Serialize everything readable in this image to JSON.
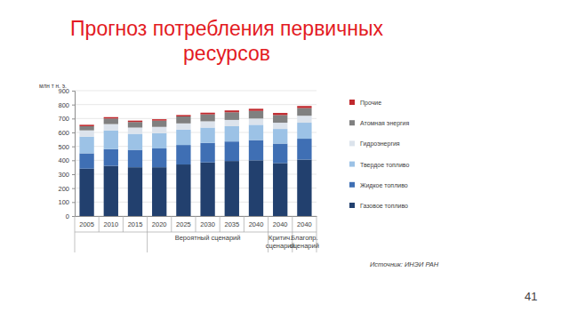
{
  "chart_data": {
    "type": "bar",
    "stacked": true,
    "title": "Прогноз потребления первичных ресурсов",
    "y_label": "млн т н. э.",
    "categories": [
      "2005",
      "2010",
      "2015",
      "2020",
      "2025",
      "2030",
      "2035",
      "2040",
      "2040",
      "2040"
    ],
    "groups": [
      {
        "label": [
          "Вероятный сценарий"
        ],
        "from": 3,
        "to": 7
      },
      {
        "label": [
          "Критич.",
          "сценарий"
        ],
        "from": 8,
        "to": 8
      },
      {
        "label": [
          "Благопр.",
          "сценарий"
        ],
        "from": 9,
        "to": 9
      }
    ],
    "series": [
      {
        "name": "Газовое топливо",
        "color": "#22406e",
        "values": [
          340,
          360,
          350,
          350,
          370,
          385,
          395,
          400,
          380,
          405
        ]
      },
      {
        "name": "Жидкое топливо",
        "color": "#3f6fb4",
        "values": [
          110,
          120,
          125,
          135,
          140,
          140,
          140,
          145,
          140,
          150
        ]
      },
      {
        "name": "Твердое топливо",
        "color": "#9cc2e6",
        "values": [
          120,
          135,
          115,
          110,
          110,
          110,
          110,
          110,
          105,
          115
        ]
      },
      {
        "name": "Гидроэнергия",
        "color": "#dce3ec",
        "values": [
          45,
          45,
          45,
          45,
          45,
          45,
          45,
          45,
          45,
          50
        ]
      },
      {
        "name": "Атомная энергия",
        "color": "#808080",
        "values": [
          30,
          40,
          40,
          45,
          50,
          50,
          55,
          55,
          55,
          55
        ]
      },
      {
        "name": "Прочие",
        "color": "#c0282d",
        "values": [
          10,
          10,
          10,
          10,
          10,
          12,
          13,
          15,
          15,
          15
        ]
      }
    ],
    "ylim": [
      0,
      900
    ],
    "yticks": [
      0,
      100,
      200,
      300,
      400,
      500,
      600,
      700,
      800,
      900
    ],
    "grid": true,
    "legend": "right",
    "source": "Источник: ИНЭИ РАН",
    "page_number": "41"
  }
}
